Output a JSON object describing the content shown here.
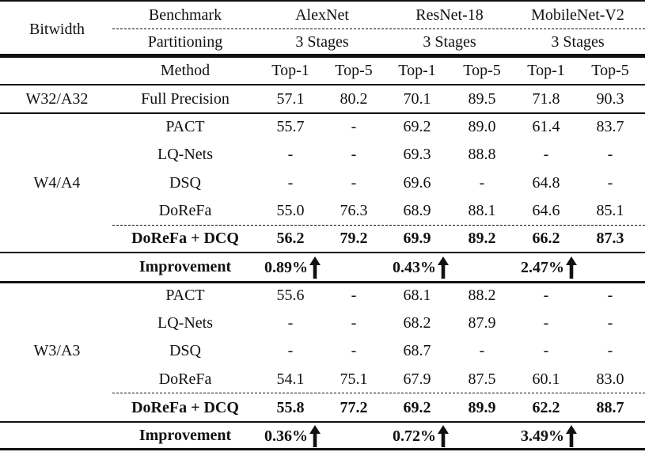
{
  "header": {
    "bitwidth_label": "Bitwidth",
    "benchmark_label": "Benchmark",
    "partitioning_label": "Partitioning",
    "method_label": "Method",
    "networks": [
      {
        "name": "AlexNet",
        "partition": "3 Stages",
        "top1": "Top-1",
        "top5": "Top-5"
      },
      {
        "name": "ResNet-18",
        "partition": "3 Stages",
        "top1": "Top-1",
        "top5": "Top-5"
      },
      {
        "name": "MobileNet-V2",
        "partition": "3 Stages",
        "top1": "Top-1",
        "top5": "Top-5"
      }
    ]
  },
  "full_precision": {
    "bitwidth": "W32/A32",
    "method": "Full Precision",
    "values": [
      "57.1",
      "80.2",
      "70.1",
      "89.5",
      "71.8",
      "90.3"
    ]
  },
  "groups": [
    {
      "bitwidth": "W4/A4",
      "rows": [
        {
          "method": "PACT",
          "values": [
            "55.7",
            "-",
            "69.2",
            "89.0",
            "61.4",
            "83.7"
          ]
        },
        {
          "method": "LQ-Nets",
          "values": [
            "-",
            "-",
            "69.3",
            "88.8",
            "-",
            "-"
          ]
        },
        {
          "method": "DSQ",
          "values": [
            "-",
            "-",
            "69.6",
            "-",
            "64.8",
            "-"
          ]
        },
        {
          "method": "DoReFa",
          "values": [
            "55.0",
            "76.3",
            "68.9",
            "88.1",
            "64.6",
            "85.1"
          ]
        }
      ],
      "ours": {
        "method": "DoReFa + DCQ",
        "values": [
          "56.2",
          "79.2",
          "69.9",
          "89.2",
          "66.2",
          "87.3"
        ]
      },
      "improvement": {
        "label": "Improvement",
        "values": [
          "0.89%",
          "0.43%",
          "2.47%"
        ],
        "icon": "up-arrow-icon"
      }
    },
    {
      "bitwidth": "W3/A3",
      "rows": [
        {
          "method": "PACT",
          "values": [
            "55.6",
            "-",
            "68.1",
            "88.2",
            "-",
            "-"
          ]
        },
        {
          "method": "LQ-Nets",
          "values": [
            "-",
            "-",
            "68.2",
            "87.9",
            "-",
            "-"
          ]
        },
        {
          "method": "DSQ",
          "values": [
            "-",
            "-",
            "68.7",
            "-",
            "-",
            "-"
          ]
        },
        {
          "method": "DoReFa",
          "values": [
            "54.1",
            "75.1",
            "67.9",
            "87.5",
            "60.1",
            "83.0"
          ]
        }
      ],
      "ours": {
        "method": "DoReFa + DCQ",
        "values": [
          "55.8",
          "77.2",
          "69.2",
          "89.9",
          "62.2",
          "88.7"
        ]
      },
      "improvement": {
        "label": "Improvement",
        "values": [
          "0.36%",
          "0.72%",
          "3.49%"
        ],
        "icon": "up-arrow-icon"
      }
    }
  ]
}
